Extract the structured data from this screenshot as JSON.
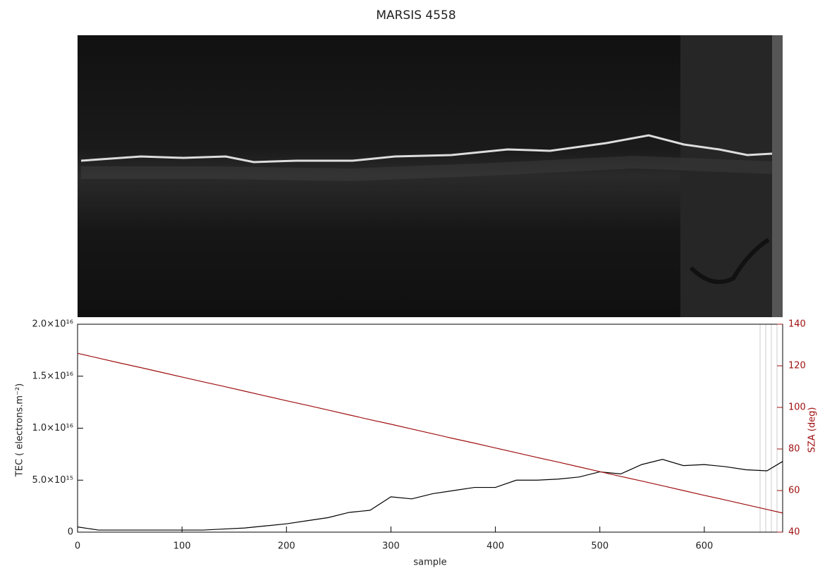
{
  "chart_data": {
    "type": "line",
    "title": "MARSIS 4558",
    "x_label": "sample",
    "y_label": "TEC ( electrons.m⁻²)",
    "y2_label": "SZA (deg)",
    "x": [
      0,
      20,
      40,
      60,
      80,
      100,
      120,
      140,
      160,
      180,
      200,
      220,
      240,
      260,
      280,
      300,
      320,
      340,
      360,
      380,
      400,
      420,
      440,
      460,
      480,
      500,
      520,
      540,
      560,
      580,
      600,
      620,
      640,
      660,
      675
    ],
    "series": [
      {
        "name": "TEC",
        "color": "#000000",
        "values": [
          500000000000000.0,
          200000000000000.0,
          200000000000000.0,
          200000000000000.0,
          200000000000000.0,
          200000000000000.0,
          200000000000000.0,
          300000000000000.0,
          400000000000000.0,
          600000000000000.0,
          800000000000000.0,
          1100000000000000.0,
          1400000000000000.0,
          1900000000000000.0,
          2100000000000000.0,
          3400000000000000.0,
          3200000000000000.0,
          3700000000000000.0,
          4000000000000000.0,
          4300000000000000.0,
          4300000000000000.0,
          5000000000000000.0,
          5000000000000000.0,
          5100000000000000.0,
          5300000000000000.0,
          5800000000000000.0,
          5600000000000000.0,
          6500000000000000.0,
          7000000000000000.0,
          6400000000000000.0,
          6500000000000000.0,
          6300000000000000.0,
          6000000000000000.0,
          5900000000000000.0,
          6800000000000000.0
        ]
      },
      {
        "name": "SZA",
        "color": "#a01010",
        "axis": "y2",
        "values": [
          126,
          123.7,
          121.4,
          119.2,
          116.9,
          114.6,
          112.3,
          110.1,
          107.8,
          105.5,
          103.2,
          101.0,
          98.7,
          96.4,
          94.1,
          91.9,
          89.6,
          87.3,
          85.0,
          82.8,
          80.5,
          78.2,
          75.9,
          73.7,
          71.4,
          69.1,
          66.8,
          64.6,
          62.3,
          60.0,
          57.7,
          55.5,
          53.2,
          50.9,
          49.2
        ]
      }
    ],
    "xlim": [
      0,
      675
    ],
    "xticks": [
      0,
      100,
      200,
      300,
      400,
      500,
      600
    ],
    "ylim": [
      0,
      2e+16
    ],
    "yticks": [
      0,
      {
        "value": 5000000000000000.0,
        "label": "5.0×10¹⁵"
      },
      {
        "value": 1e+16,
        "label": "1.0×10¹⁶"
      },
      {
        "value": 1.5e+16,
        "label": "1.5×10¹⁶"
      },
      {
        "value": 2e+16,
        "label": "2.0×10¹⁶"
      }
    ],
    "y2lim": [
      40,
      140
    ],
    "y2ticks": [
      40,
      60,
      80,
      100,
      120,
      140
    ],
    "y2_color": "#a01010"
  }
}
